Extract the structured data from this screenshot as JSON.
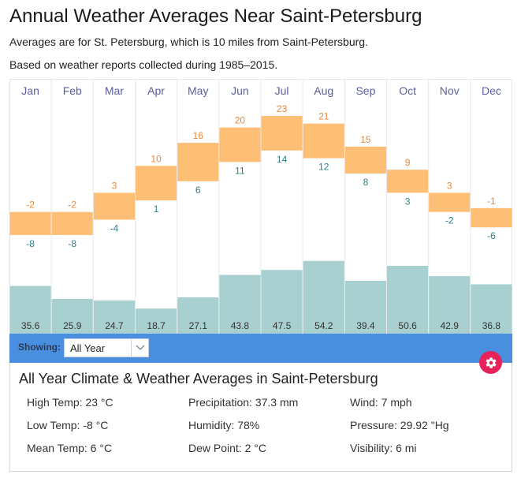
{
  "header": {
    "title": "Annual Weather Averages Near Saint-Petersburg",
    "subtitle_location": "Averages are for St. Petersburg, which is 10 miles from Saint-Petersburg.",
    "subtitle_period": "Based on weather reports collected during 1985–2015."
  },
  "colors": {
    "temp_bar": "#fdbe75",
    "high_label": "#e8883a",
    "low_label": "#2f7f86",
    "precip_bar": "#a8d0d0",
    "month_label": "#5b5f9e",
    "toolbar_bg": "#4a8ee0",
    "gear_button": "#e8235a"
  },
  "chart_data": {
    "type": "bar",
    "title": "Annual Weather Averages Near Saint-Petersburg",
    "categories": [
      "Jan",
      "Feb",
      "Mar",
      "Apr",
      "May",
      "Jun",
      "Jul",
      "Aug",
      "Sep",
      "Oct",
      "Nov",
      "Dec"
    ],
    "series": [
      {
        "name": "High Temp (°C)",
        "values": [
          -2,
          -2,
          3,
          10,
          16,
          20,
          23,
          21,
          15,
          9,
          3,
          -1
        ]
      },
      {
        "name": "Low Temp (°C)",
        "values": [
          -8,
          -8,
          -4,
          1,
          6,
          11,
          14,
          12,
          8,
          3,
          -2,
          -6
        ]
      },
      {
        "name": "Precipitation (mm)",
        "values": [
          35.6,
          25.9,
          24.7,
          18.7,
          27.1,
          43.8,
          47.5,
          54.2,
          39.4,
          50.6,
          42.9,
          36.8
        ]
      }
    ],
    "xlabel": "",
    "ylabel": "",
    "grid": true,
    "legend": "none"
  },
  "toolbar": {
    "showing_label": "Showing:",
    "period_select_value": "All Year"
  },
  "summary": {
    "title": "All Year Climate & Weather Averages in Saint-Petersburg",
    "stats": [
      [
        "High Temp: 23 °C",
        "Precipitation: 37.3 mm",
        "Wind: 7 mph"
      ],
      [
        "Low Temp: -8 °C",
        "Humidity: 78%",
        "Pressure: 29.92 \"Hg"
      ],
      [
        "Mean Temp: 6 °C",
        "Dew Point: 2 °C",
        "Visibility: 6 mi"
      ]
    ]
  }
}
